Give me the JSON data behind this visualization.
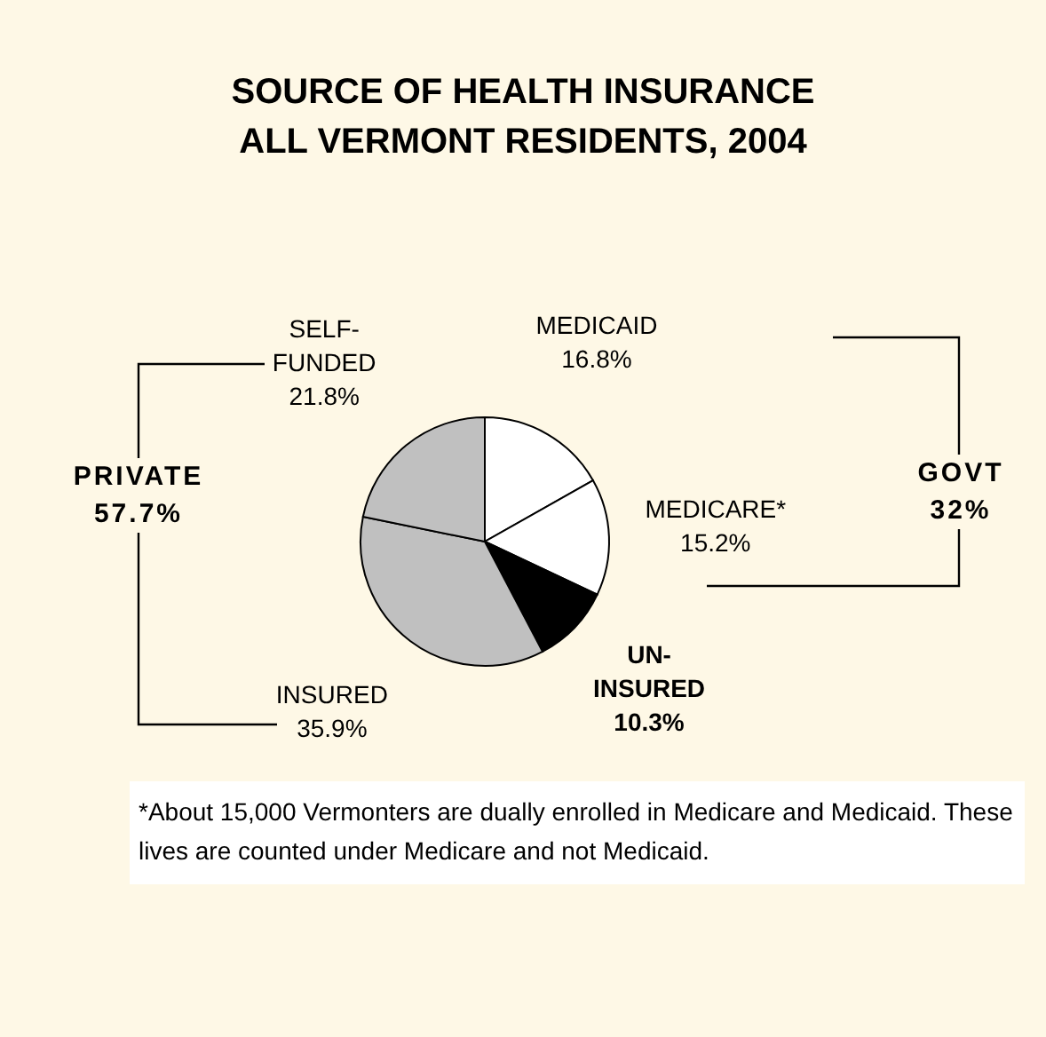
{
  "chart_data": {
    "type": "pie",
    "title": "SOURCE OF HEALTH INSURANCE\nALL VERMONT RESIDENTS, 2004",
    "categories": [
      "MEDICAID",
      "MEDICARE*",
      "UN-INSURED",
      "INSURED",
      "SELF-FUNDED"
    ],
    "values": [
      16.8,
      15.2,
      10.3,
      35.9,
      21.8
    ],
    "value_labels": [
      "16.8%",
      "15.2%",
      "10.3%",
      "35.9%",
      "21.8%"
    ],
    "colors": [
      "#ffffff",
      "#ffffff",
      "#000000",
      "#c0c0c0",
      "#c0c0c0"
    ],
    "annotations": [
      "PRIVATE\n57.7%",
      "GOVT\n32%",
      "*About 15,000 Vermonters are dually enrolled in Medicare and Medicaid.  These lives are counted under Medicare and not Medicaid."
    ],
    "legend": false
  }
}
